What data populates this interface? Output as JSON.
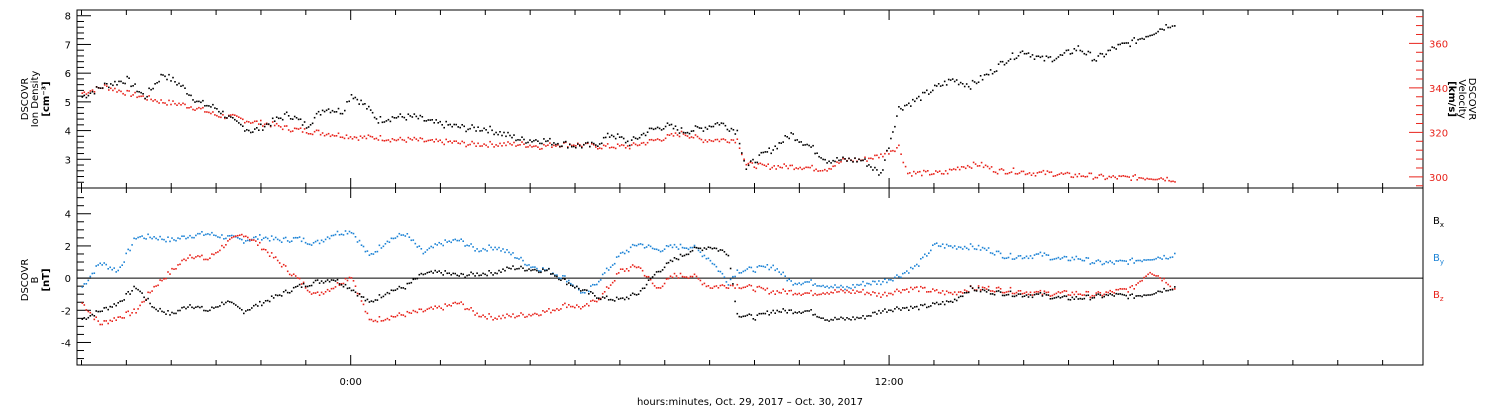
{
  "chart_data": [
    {
      "type": "scatter",
      "panel": "top",
      "ylabel_left": [
        "DSCOVR",
        "Ion Density",
        "[cm⁻³]"
      ],
      "ylabel_right": [
        "DSCOVR",
        "Velocity",
        "[km/s]"
      ],
      "y_ticks_left": [
        "3",
        "4",
        "5",
        "6",
        "7",
        "8"
      ],
      "y_ticks_right": [
        "300",
        "320",
        "340",
        "360"
      ],
      "ylim_left": [
        2.0,
        8.2
      ],
      "ylim_right": [
        295,
        375
      ],
      "x_units": "hours relative to Oct. 29, 2017 00:00",
      "series": [
        {
          "name": "Ion Density",
          "color": "#000000",
          "axis": "left",
          "x": [
            -6.0,
            -5.5,
            -5.0,
            -4.6,
            -4.2,
            -3.8,
            -3.4,
            -3.0,
            -2.6,
            -2.2,
            -1.8,
            -1.4,
            -1.0,
            -0.6,
            -0.2,
            0.0,
            0.3,
            0.6,
            1.0,
            1.4,
            1.8,
            2.2,
            2.6,
            3.0,
            3.4,
            3.8,
            4.2,
            4.6,
            5.0,
            5.4,
            5.8,
            6.2,
            6.6,
            7.0,
            7.4,
            7.8,
            8.2,
            8.6,
            8.8,
            9.0,
            9.4,
            9.8,
            10.2,
            10.6,
            11.0,
            11.4,
            11.8,
            12.2,
            12.6,
            13.0,
            13.4,
            13.8,
            14.2,
            14.6,
            15.0,
            15.4,
            15.8,
            16.2,
            16.6,
            17.0,
            17.4,
            17.8,
            18.2,
            18.4
          ],
          "y": [
            5.2,
            5.6,
            5.8,
            5.2,
            6.0,
            5.6,
            5.0,
            4.8,
            4.3,
            4.0,
            4.3,
            4.6,
            4.2,
            4.8,
            4.7,
            5.3,
            4.9,
            4.4,
            4.5,
            4.5,
            4.3,
            4.2,
            4.1,
            4.1,
            3.9,
            3.7,
            3.7,
            3.6,
            3.5,
            3.5,
            3.9,
            3.6,
            4.0,
            4.2,
            4.0,
            4.1,
            4.3,
            4.0,
            2.7,
            3.0,
            3.4,
            3.9,
            3.5,
            3.0,
            3.0,
            3.0,
            2.5,
            4.8,
            5.1,
            5.5,
            5.8,
            5.6,
            6.0,
            6.5,
            6.8,
            6.5,
            6.6,
            6.9,
            6.5,
            6.9,
            7.1,
            7.4,
            7.7,
            7.8
          ]
        },
        {
          "name": "Velocity",
          "color": "#e8231b",
          "axis": "right",
          "x": [
            -6.0,
            -5.5,
            -5.0,
            -4.6,
            -4.2,
            -3.8,
            -3.4,
            -3.0,
            -2.6,
            -2.2,
            -1.8,
            -1.4,
            -1.0,
            -0.6,
            -0.2,
            0.2,
            0.6,
            1.0,
            1.4,
            1.8,
            2.2,
            2.6,
            3.0,
            3.4,
            3.8,
            4.2,
            4.6,
            5.0,
            5.4,
            5.8,
            6.2,
            6.6,
            7.0,
            7.4,
            7.8,
            8.2,
            8.6,
            8.8,
            9.2,
            9.6,
            10.0,
            10.4,
            10.6,
            11.0,
            11.4,
            11.8,
            12.2,
            12.4,
            12.8,
            13.2,
            13.6,
            14.0,
            14.4,
            14.8,
            15.2,
            15.6,
            16.0,
            16.4,
            16.8,
            17.2,
            17.6,
            18.0,
            18.4
          ],
          "y": [
            338,
            341,
            338,
            336,
            334,
            333,
            331,
            328,
            327,
            325,
            324,
            322,
            321,
            320,
            319,
            318,
            318,
            317,
            317,
            316,
            316,
            315,
            315,
            315,
            315,
            314,
            315,
            315,
            314,
            314,
            314,
            316,
            318,
            320,
            317,
            317,
            317,
            306,
            305,
            305,
            305,
            304,
            304,
            308,
            308,
            310,
            314,
            302,
            302,
            302,
            305,
            306,
            303,
            303,
            302,
            302,
            301,
            301,
            300,
            300,
            300,
            300,
            299
          ]
        }
      ]
    },
    {
      "type": "scatter",
      "panel": "bottom",
      "ylabel_left": [
        "DSCOVR",
        "B",
        "[nT]"
      ],
      "y_ticks_left": [
        "-4",
        "-2",
        "0",
        "2",
        "4"
      ],
      "ylim": [
        -5.4,
        5.6
      ],
      "zero_line": true,
      "x_units": "hours relative to Oct. 29, 2017 00:00",
      "series": [
        {
          "name": "Bx",
          "color": "#000000",
          "x": [
            -6.0,
            -5.6,
            -5.2,
            -4.8,
            -4.4,
            -4.0,
            -3.6,
            -3.2,
            -2.8,
            -2.4,
            -2.0,
            -1.6,
            -1.2,
            -0.8,
            -0.4,
            0.0,
            0.4,
            0.8,
            1.2,
            1.6,
            2.0,
            2.4,
            2.8,
            3.2,
            3.6,
            4.0,
            4.4,
            4.8,
            5.2,
            5.6,
            6.0,
            6.4,
            6.8,
            7.2,
            7.6,
            8.0,
            8.4,
            8.6,
            9.0,
            9.4,
            9.8,
            10.2,
            10.6,
            11.0,
            11.4,
            11.8,
            12.2,
            12.6,
            13.0,
            13.4,
            13.8,
            14.2,
            14.6,
            15.0,
            15.4,
            15.8,
            16.2,
            16.6,
            17.0,
            17.4,
            17.8,
            18.2,
            18.4
          ],
          "y": [
            -2.5,
            -2.0,
            -1.5,
            -0.5,
            -1.8,
            -2.2,
            -1.6,
            -2.0,
            -1.4,
            -2.0,
            -1.5,
            -1.0,
            -0.5,
            -0.2,
            0.0,
            -0.6,
            -1.5,
            -0.8,
            -0.5,
            0.3,
            0.4,
            0.2,
            0.3,
            0.4,
            0.7,
            0.6,
            0.5,
            -0.2,
            -0.8,
            -1.2,
            -1.3,
            -0.9,
            0.4,
            1.2,
            1.8,
            2.0,
            1.6,
            -2.2,
            -2.4,
            -2.0,
            -2.0,
            -2.0,
            -2.5,
            -2.5,
            -2.4,
            -2.0,
            -1.8,
            -1.8,
            -1.6,
            -1.4,
            -0.6,
            -0.8,
            -0.9,
            -1.0,
            -1.0,
            -1.2,
            -1.2,
            -1.1,
            -1.0,
            -1.1,
            -0.9,
            -0.6,
            -0.5
          ]
        },
        {
          "name": "By",
          "color": "#1e84d6",
          "x": [
            -6.0,
            -5.6,
            -5.2,
            -4.8,
            -4.4,
            -4.0,
            -3.6,
            -3.2,
            -2.8,
            -2.4,
            -2.0,
            -1.6,
            -1.2,
            -0.8,
            -0.4,
            0.0,
            0.4,
            0.8,
            1.2,
            1.6,
            2.0,
            2.4,
            2.8,
            3.2,
            3.6,
            4.0,
            4.4,
            4.8,
            5.2,
            5.6,
            6.0,
            6.4,
            6.8,
            7.2,
            7.6,
            8.0,
            8.4,
            8.6,
            9.0,
            9.4,
            9.8,
            10.2,
            10.6,
            11.0,
            11.4,
            11.8,
            12.2,
            12.6,
            13.0,
            13.4,
            13.8,
            14.2,
            14.6,
            15.0,
            15.4,
            15.8,
            16.2,
            16.6,
            17.0,
            17.4,
            17.8,
            18.2,
            18.4
          ],
          "y": [
            -0.5,
            1.0,
            0.5,
            2.6,
            2.6,
            2.4,
            2.7,
            2.8,
            2.6,
            2.4,
            2.6,
            2.4,
            2.5,
            2.2,
            2.8,
            3.0,
            1.4,
            2.4,
            2.8,
            1.6,
            2.2,
            2.4,
            1.8,
            2.0,
            1.5,
            0.8,
            0.5,
            0.0,
            -1.0,
            0.2,
            1.5,
            2.2,
            1.8,
            2.0,
            2.0,
            1.2,
            -0.2,
            0.5,
            0.6,
            0.8,
            -0.2,
            -0.2,
            -0.4,
            -0.6,
            -0.3,
            -0.2,
            0.2,
            0.8,
            2.1,
            2.0,
            2.0,
            1.8,
            1.4,
            1.4,
            1.5,
            1.2,
            1.3,
            1.0,
            1.0,
            1.1,
            1.3,
            1.4,
            1.6
          ]
        },
        {
          "name": "Bz",
          "color": "#e8231b",
          "x": [
            -6.0,
            -5.6,
            -5.2,
            -4.8,
            -4.4,
            -4.0,
            -3.6,
            -3.2,
            -2.8,
            -2.4,
            -2.0,
            -1.6,
            -1.2,
            -0.8,
            -0.4,
            0.0,
            0.4,
            0.8,
            1.2,
            1.6,
            2.0,
            2.4,
            2.8,
            3.2,
            3.6,
            4.0,
            4.4,
            4.8,
            5.2,
            5.6,
            6.0,
            6.4,
            6.8,
            7.2,
            7.6,
            8.0,
            8.4,
            8.6,
            9.0,
            9.4,
            9.8,
            10.2,
            10.6,
            11.0,
            11.4,
            11.8,
            12.2,
            12.6,
            13.0,
            13.4,
            13.8,
            14.2,
            14.6,
            15.0,
            15.4,
            15.8,
            16.2,
            16.6,
            17.0,
            17.4,
            17.8,
            18.2,
            18.4
          ],
          "y": [
            -1.5,
            -2.8,
            -2.4,
            -2.0,
            -0.5,
            0.5,
            1.5,
            1.2,
            2.2,
            2.8,
            2.0,
            1.0,
            0.0,
            -1.0,
            -0.5,
            0.2,
            -2.6,
            -2.4,
            -2.2,
            -2.0,
            -1.8,
            -1.5,
            -2.2,
            -2.4,
            -2.3,
            -2.2,
            -2.0,
            -1.6,
            -1.8,
            -1.0,
            0.5,
            0.8,
            -0.6,
            0.2,
            0.2,
            -0.5,
            -0.4,
            -0.4,
            -0.6,
            -0.8,
            -0.8,
            -0.9,
            -0.8,
            -0.8,
            -0.8,
            -1.0,
            -0.7,
            -0.6,
            -0.8,
            -0.9,
            -0.6,
            -0.6,
            -0.7,
            -0.8,
            -0.9,
            -0.9,
            -0.9,
            -1.0,
            -0.8,
            -0.6,
            0.5,
            -0.2,
            -0.8
          ]
        }
      ],
      "legend": [
        "B",
        "B",
        "B"
      ],
      "legend_subscripts": [
        "x",
        "y",
        "z"
      ]
    }
  ],
  "x_axis": {
    "tick_labels": [
      "0:00",
      "12:00"
    ],
    "tick_hours": [
      0,
      12
    ],
    "range_hours": [
      -6.1,
      23.9
    ],
    "label": "hours:minutes, Oct. 29, 2017 – Oct. 30, 2017"
  }
}
